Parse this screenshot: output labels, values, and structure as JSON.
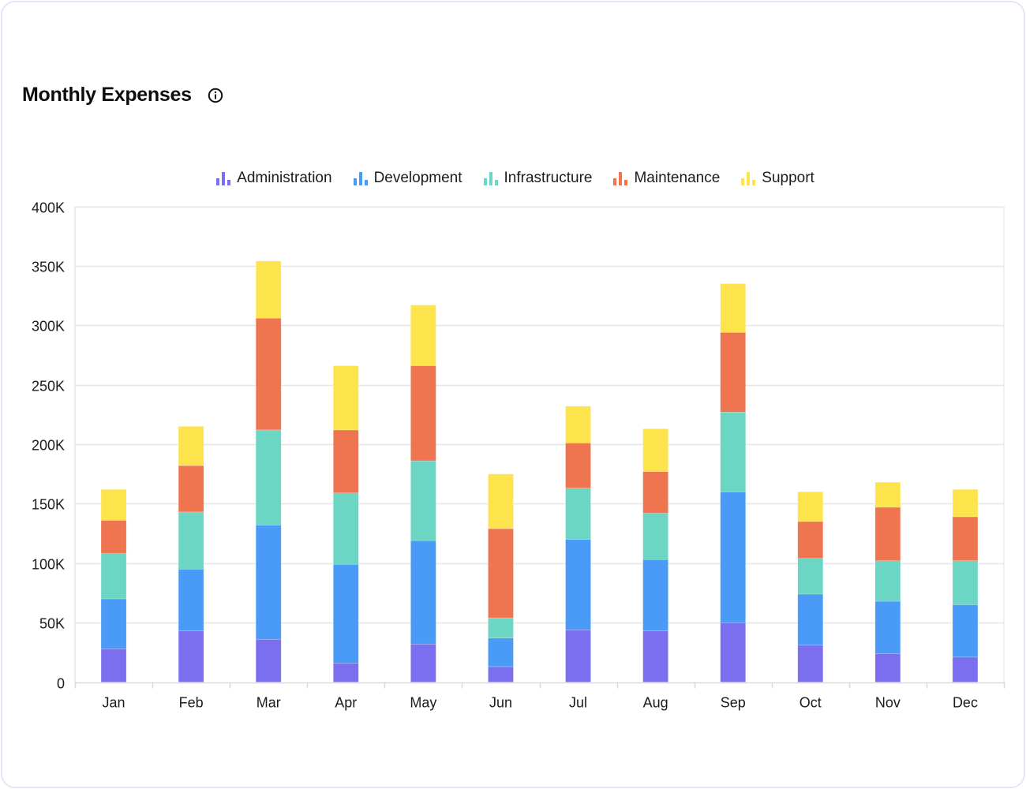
{
  "card": {
    "title": "Monthly Expenses",
    "info_icon": "info-circle-icon"
  },
  "legend": [
    {
      "label": "Administration",
      "color": "#7b6ff0",
      "icon": "bar-chart-icon"
    },
    {
      "label": "Development",
      "color": "#4a9bf7",
      "icon": "bar-chart-icon"
    },
    {
      "label": "Infrastructure",
      "color": "#6bd6c3",
      "icon": "bar-chart-icon"
    },
    {
      "label": "Maintenance",
      "color": "#ef7550",
      "icon": "bar-chart-icon"
    },
    {
      "label": "Support",
      "color": "#fde44d",
      "icon": "bar-chart-icon"
    }
  ],
  "chart_data": {
    "type": "bar",
    "stacked": true,
    "title": "Monthly Expenses",
    "xlabel": "",
    "ylabel": "",
    "ylim": [
      0,
      400000
    ],
    "yticks": [
      0,
      50000,
      100000,
      150000,
      200000,
      250000,
      300000,
      350000,
      400000
    ],
    "ytick_labels": [
      "0",
      "50K",
      "100K",
      "150K",
      "200K",
      "250K",
      "300K",
      "350K",
      "400K"
    ],
    "grid": true,
    "legend_position": "top-center",
    "categories": [
      "Jan",
      "Feb",
      "Mar",
      "Apr",
      "May",
      "Jun",
      "Jul",
      "Aug",
      "Sep",
      "Oct",
      "Nov",
      "Dec"
    ],
    "series": [
      {
        "name": "Administration",
        "color": "#7b6ff0",
        "values": [
          28000,
          43000,
          36000,
          16000,
          32000,
          13000,
          44000,
          43000,
          50000,
          31000,
          24000,
          21000
        ]
      },
      {
        "name": "Development",
        "color": "#4a9bf7",
        "values": [
          42000,
          52000,
          96000,
          83000,
          87000,
          24000,
          76000,
          60000,
          110000,
          43000,
          44000,
          44000
        ]
      },
      {
        "name": "Infrastructure",
        "color": "#6bd6c3",
        "values": [
          38000,
          48000,
          80000,
          60000,
          67000,
          17000,
          43000,
          39000,
          67000,
          30000,
          34000,
          37000
        ]
      },
      {
        "name": "Maintenance",
        "color": "#ef7550",
        "values": [
          28000,
          39000,
          94000,
          53000,
          80000,
          75000,
          38000,
          35000,
          67000,
          31000,
          45000,
          37000
        ]
      },
      {
        "name": "Support",
        "color": "#fde44d",
        "values": [
          26000,
          33000,
          48000,
          54000,
          51000,
          46000,
          31000,
          36000,
          41000,
          25000,
          21000,
          23000
        ]
      }
    ]
  }
}
